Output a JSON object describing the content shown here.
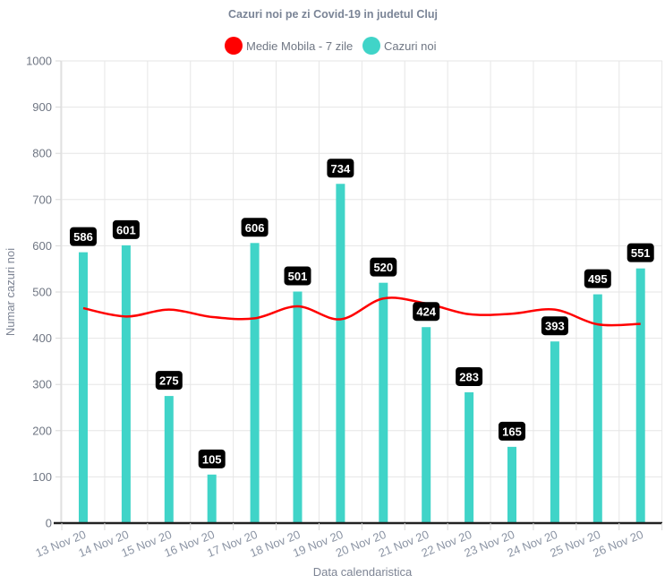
{
  "chart_data": {
    "type": "bar",
    "title": "Cazuri noi pe zi Covid-19 in judetul Cluj",
    "xlabel": "Data calendaristica",
    "ylabel": "Numar cazuri noi",
    "ylim": [
      0,
      1000
    ],
    "yticks": [
      0,
      100,
      200,
      300,
      400,
      500,
      600,
      700,
      800,
      900,
      1000
    ],
    "categories": [
      "13 Nov 20",
      "14 Nov 20",
      "15 Nov 20",
      "16 Nov 20",
      "17 Nov 20",
      "18 Nov 20",
      "19 Nov 20",
      "20 Nov 20",
      "21 Nov 20",
      "22 Nov 20",
      "23 Nov 20",
      "24 Nov 20",
      "25 Nov 20",
      "26 Nov 20"
    ],
    "legend_position": "top-center",
    "grid": true,
    "series": [
      {
        "name": "Medie Mobila - 7 zile",
        "kind": "line",
        "color": "#ff0000",
        "values": [
          465,
          447,
          462,
          446,
          443,
          469,
          441,
          486,
          475,
          452,
          453,
          462,
          430,
          431
        ]
      },
      {
        "name": "Cazuri noi",
        "kind": "bar",
        "color": "#40d4c8",
        "values": [
          586,
          601,
          275,
          105,
          606,
          501,
          734,
          520,
          424,
          283,
          165,
          393,
          495,
          551
        ],
        "labels": [
          "586",
          "601",
          "275",
          "105",
          "606",
          "501",
          "734",
          "520",
          "424",
          "283",
          "165",
          "393",
          "495",
          "551"
        ]
      }
    ]
  }
}
